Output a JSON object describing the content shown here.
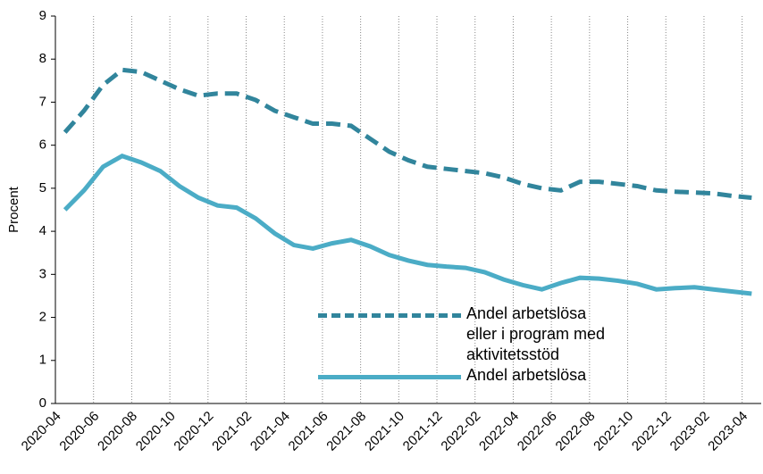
{
  "chart_data": {
    "type": "line",
    "y_label": "Procent",
    "categories": [
      "2020-04",
      null,
      "2020-06",
      null,
      "2020-08",
      null,
      "2020-10",
      null,
      "2020-12",
      null,
      "2021-02",
      null,
      "2021-04",
      null,
      "2021-06",
      null,
      "2021-08",
      null,
      "2021-10",
      null,
      "2021-12",
      null,
      "2022-02",
      null,
      "2022-04",
      null,
      "2022-06",
      null,
      "2022-08",
      null,
      "2022-10",
      null,
      "2022-12",
      null,
      "2023-02",
      null,
      "2023-04"
    ],
    "series": [
      {
        "name": "Andel arbetslösa eller i program med aktivitetsstöd",
        "color": "#31859c",
        "dash": true,
        "values": [
          6.3,
          6.8,
          7.4,
          7.75,
          7.7,
          7.5,
          7.3,
          7.15,
          7.2,
          7.2,
          7.05,
          6.8,
          6.65,
          6.5,
          6.5,
          6.45,
          6.15,
          5.85,
          5.65,
          5.5,
          5.45,
          5.4,
          5.35,
          5.25,
          5.1,
          5.0,
          4.95,
          5.15,
          5.15,
          5.1,
          5.05,
          4.95,
          4.92,
          4.9,
          4.88,
          4.82,
          4.78
        ]
      },
      {
        "name": "Andel arbetslösa",
        "color": "#4bacc6",
        "dash": false,
        "values": [
          4.5,
          4.95,
          5.5,
          5.75,
          5.6,
          5.4,
          5.05,
          4.78,
          4.6,
          4.55,
          4.3,
          3.95,
          3.68,
          3.6,
          3.72,
          3.8,
          3.65,
          3.45,
          3.32,
          3.22,
          3.18,
          3.15,
          3.05,
          2.88,
          2.75,
          2.65,
          2.8,
          2.92,
          2.9,
          2.85,
          2.78,
          2.65,
          2.68,
          2.7,
          2.65,
          2.6,
          2.55
        ]
      }
    ],
    "ylim": [
      0,
      9
    ],
    "yticks": [
      0,
      1,
      2,
      3,
      4,
      5,
      6,
      7,
      8,
      9
    ],
    "grid": "x"
  }
}
